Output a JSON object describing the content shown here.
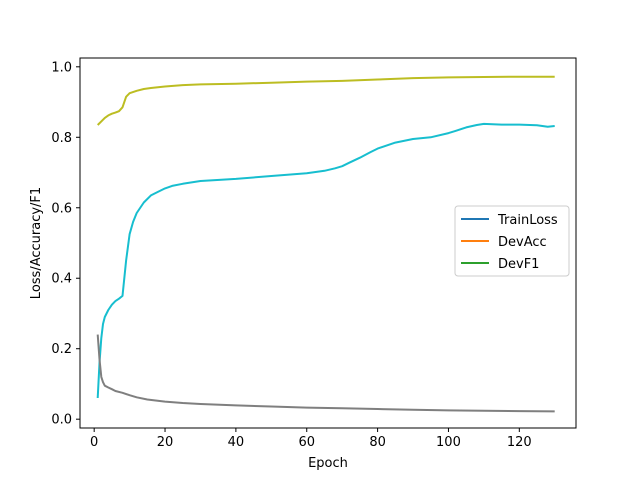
{
  "chart_data": {
    "type": "line",
    "xlabel": "Epoch",
    "ylabel": "Loss/Accuracy/F1",
    "xlim": [
      -4,
      136
    ],
    "ylim": [
      -0.025,
      1.025
    ],
    "xticks": [
      0,
      20,
      40,
      60,
      80,
      100,
      120
    ],
    "yticks": [
      0.0,
      0.2,
      0.4,
      0.6,
      0.8,
      1.0
    ],
    "xtick_labels": [
      "0",
      "20",
      "40",
      "60",
      "80",
      "100",
      "120"
    ],
    "ytick_labels": [
      "0.0",
      "0.2",
      "0.4",
      "0.6",
      "0.8",
      "1.0"
    ],
    "grid": false,
    "legend_position": "center-right",
    "legend": [
      {
        "name": "TrainLoss",
        "color": "#1f77b4"
      },
      {
        "name": "DevAcc",
        "color": "#ff7f0e"
      },
      {
        "name": "DevF1",
        "color": "#2ca02c"
      }
    ],
    "series": [
      {
        "id": "dev-f1-top",
        "color": "#bcbd22",
        "x": [
          1,
          2,
          3,
          4,
          5,
          6,
          7,
          8,
          9,
          10,
          12,
          14,
          16,
          18,
          20,
          25,
          30,
          40,
          50,
          60,
          70,
          80,
          90,
          100,
          110,
          120,
          130
        ],
        "y": [
          0.835,
          0.845,
          0.855,
          0.862,
          0.867,
          0.87,
          0.874,
          0.885,
          0.915,
          0.925,
          0.932,
          0.937,
          0.94,
          0.942,
          0.944,
          0.948,
          0.95,
          0.952,
          0.955,
          0.958,
          0.96,
          0.964,
          0.968,
          0.97,
          0.971,
          0.972,
          0.972
        ]
      },
      {
        "id": "dev-acc-mid",
        "color": "#17becf",
        "x": [
          1,
          1.5,
          2,
          2.5,
          3,
          4,
          5,
          6,
          7,
          8,
          9,
          10,
          11,
          12,
          14,
          16,
          18,
          20,
          22,
          25,
          30,
          40,
          50,
          60,
          65,
          68,
          70,
          72,
          75,
          78,
          80,
          85,
          90,
          95,
          100,
          102,
          105,
          108,
          110,
          115,
          120,
          125,
          128,
          130
        ],
        "y": [
          0.06,
          0.16,
          0.23,
          0.27,
          0.29,
          0.31,
          0.325,
          0.335,
          0.342,
          0.35,
          0.45,
          0.525,
          0.56,
          0.585,
          0.615,
          0.635,
          0.645,
          0.655,
          0.662,
          0.668,
          0.676,
          0.682,
          0.69,
          0.698,
          0.705,
          0.712,
          0.718,
          0.728,
          0.742,
          0.758,
          0.768,
          0.785,
          0.795,
          0.8,
          0.812,
          0.818,
          0.828,
          0.835,
          0.838,
          0.836,
          0.836,
          0.834,
          0.83,
          0.832
        ]
      },
      {
        "id": "train-loss-bottom",
        "color": "#7f7f7f",
        "x": [
          1,
          1.5,
          2,
          2.5,
          3,
          4,
          5,
          6,
          8,
          10,
          12,
          15,
          20,
          25,
          30,
          40,
          50,
          60,
          70,
          80,
          90,
          100,
          110,
          120,
          130
        ],
        "y": [
          0.24,
          0.17,
          0.12,
          0.105,
          0.095,
          0.09,
          0.085,
          0.08,
          0.075,
          0.068,
          0.062,
          0.056,
          0.05,
          0.046,
          0.043,
          0.039,
          0.036,
          0.033,
          0.031,
          0.029,
          0.027,
          0.025,
          0.024,
          0.023,
          0.022
        ]
      }
    ]
  }
}
